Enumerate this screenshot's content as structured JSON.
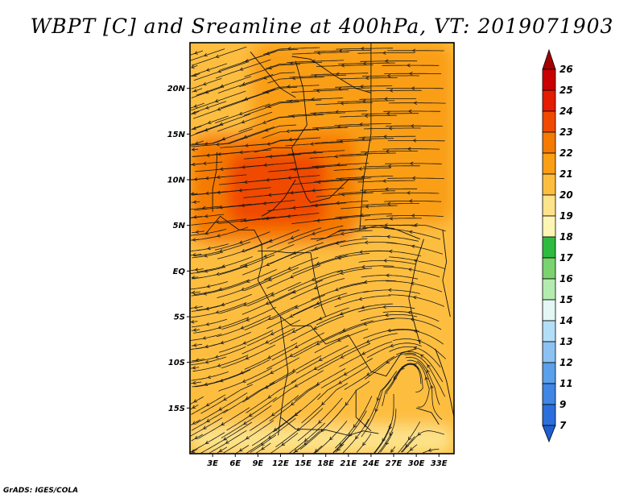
{
  "title": "WBPT [C] and Sreamline at 400hPa, VT: 2019071903",
  "credit": "GrADS: IGES/COLA",
  "map": {
    "lon_range": [
      0,
      35
    ],
    "lat_range": [
      -20,
      25
    ],
    "lat_ticks": [
      {
        "lat": 20,
        "label": "20N"
      },
      {
        "lat": 15,
        "label": "15N"
      },
      {
        "lat": 10,
        "label": "10N"
      },
      {
        "lat": 5,
        "label": "5N"
      },
      {
        "lat": 0,
        "label": "EQ"
      },
      {
        "lat": -5,
        "label": "5S"
      },
      {
        "lat": -10,
        "label": "10S"
      },
      {
        "lat": -15,
        "label": "15S"
      }
    ],
    "lon_ticks": [
      {
        "lon": 3,
        "label": "3E"
      },
      {
        "lon": 6,
        "label": "6E"
      },
      {
        "lon": 9,
        "label": "9E"
      },
      {
        "lon": 12,
        "label": "12E"
      },
      {
        "lon": 15,
        "label": "15E"
      },
      {
        "lon": 18,
        "label": "18E"
      },
      {
        "lon": 21,
        "label": "21E"
      },
      {
        "lon": 24,
        "label": "24E"
      },
      {
        "lon": 27,
        "label": "27E"
      },
      {
        "lon": 30,
        "label": "30E"
      },
      {
        "lon": 33,
        "label": "33E"
      }
    ],
    "shading_zones": [
      {
        "level": 20,
        "lon": [
          0,
          35
        ],
        "lat": [
          -20,
          25
        ]
      },
      {
        "level": 21,
        "lon": [
          8,
          35
        ],
        "lat": [
          5,
          25
        ]
      },
      {
        "level": 22,
        "lon": [
          0,
          22
        ],
        "lat": [
          3,
          15
        ]
      },
      {
        "level": 23,
        "lon": [
          5,
          18
        ],
        "lat": [
          5,
          13
        ]
      },
      {
        "level": 19,
        "lon": [
          0,
          35
        ],
        "lat": [
          -20,
          -17
        ]
      }
    ]
  },
  "colorbar": {
    "levels": [
      {
        "label": "26",
        "color": "#a50000"
      },
      {
        "label": "25",
        "color": "#c80000"
      },
      {
        "label": "24",
        "color": "#e41c00"
      },
      {
        "label": "23",
        "color": "#f04a00"
      },
      {
        "label": "22",
        "color": "#f57a00"
      },
      {
        "label": "21",
        "color": "#fa9e14"
      },
      {
        "label": "20",
        "color": "#fdbe40"
      },
      {
        "label": "19",
        "color": "#fde38a"
      },
      {
        "label": "18",
        "color": "#fff6b4"
      },
      {
        "label": "17",
        "color": "#2fbb3f"
      },
      {
        "label": "16",
        "color": "#7ad36e"
      },
      {
        "label": "15",
        "color": "#b4ecb0"
      },
      {
        "label": "14",
        "color": "#e3f7f4"
      },
      {
        "label": "13",
        "color": "#b3def8"
      },
      {
        "label": "12",
        "color": "#8cc2f2"
      },
      {
        "label": "11",
        "color": "#5aa0ea"
      },
      {
        "label": "9",
        "color": "#3f86e5"
      },
      {
        "label": "7",
        "color": "#2a6fdb"
      }
    ],
    "bottom_color": "#1e5fd0"
  }
}
